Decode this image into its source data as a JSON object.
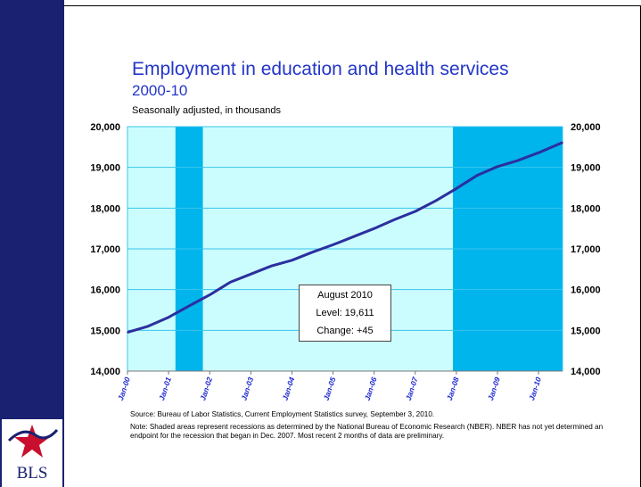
{
  "slide": {
    "title": "Employment in education and health services",
    "subtitle": "2000-10",
    "units_label": "Seasonally adjusted, in thousands",
    "source": "Source:  Bureau of Labor Statistics, Current Employment Statistics survey, September 3, 2010.",
    "note": "Note: Shaded areas represent recessions as determined by the National Bureau of Economic Research (NBER). NBER has not yet determined an endpoint for the recession that began in Dec. 2007. Most recent 2 months of data are preliminary.",
    "logo_text": "BLS",
    "colors": {
      "sidebar": "#1a2171",
      "title": "#2336c8",
      "plot_bg": "#ccfdfe",
      "recession": "#00b4ec",
      "line": "#2b2f9e",
      "grid": "#39c4ee"
    }
  },
  "callout": {
    "title": "August 2010",
    "level": "Level: 19,611",
    "change": "Change: +45"
  },
  "chart_data": {
    "type": "line",
    "title": "Employment in education and health services",
    "subtitle": "2000-10",
    "ylabel": "Seasonally adjusted, in thousands",
    "ylim": [
      14000,
      20000
    ],
    "yticks": [
      "14,000",
      "15,000",
      "16,000",
      "17,000",
      "18,000",
      "19,000",
      "20,000"
    ],
    "xticks": [
      "Jan-00",
      "Jan-01",
      "Jan-02",
      "Jan-03",
      "Jan-04",
      "Jan-05",
      "Jan-06",
      "Jan-07",
      "Jan-08",
      "Jan-09",
      "Jan-10"
    ],
    "grid": true,
    "recessions": [
      {
        "start": "Mar-01",
        "end": "Nov-01"
      },
      {
        "start": "Dec-07",
        "end": "Aug-10"
      }
    ],
    "series": [
      {
        "x": [
          "Jan-00",
          "Jul-00",
          "Jan-01",
          "Jul-01",
          "Jan-02",
          "Jul-02",
          "Jan-03",
          "Jul-03",
          "Jan-04",
          "Jul-04",
          "Jan-05",
          "Jul-05",
          "Jan-06",
          "Jul-06",
          "Jan-07",
          "Jul-07",
          "Jan-08",
          "Jul-08",
          "Jan-09",
          "Jul-09",
          "Jan-10",
          "Aug-10"
        ],
        "values": [
          14950,
          15100,
          15320,
          15600,
          15870,
          16180,
          16380,
          16580,
          16720,
          16920,
          17100,
          17300,
          17500,
          17720,
          17920,
          18180,
          18480,
          18800,
          19020,
          19170,
          19360,
          19611
        ]
      }
    ]
  }
}
